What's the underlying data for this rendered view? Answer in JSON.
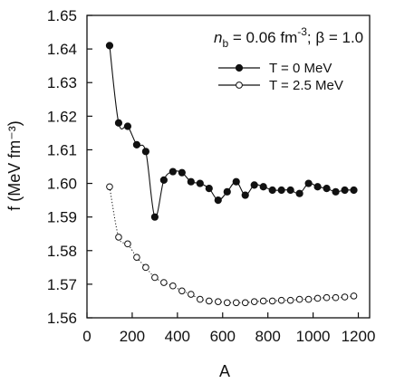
{
  "chart_data": {
    "type": "line",
    "title": "",
    "xlabel": "A",
    "ylabel": "f (MeV fm⁻³)",
    "xlim": [
      0,
      1250
    ],
    "ylim": [
      1.56,
      1.65
    ],
    "xticks": [
      0,
      200,
      400,
      600,
      800,
      1000,
      1200
    ],
    "yticks": [
      1.56,
      1.57,
      1.58,
      1.59,
      1.6,
      1.61,
      1.62,
      1.63,
      1.64,
      1.65
    ],
    "grid": false,
    "legend_position": "top-right",
    "annotation": {
      "prefix": "n",
      "subscript": "b",
      "equals": " = 0.06 fm",
      "superscript": "-3",
      "rest": "; β = 1.0"
    },
    "series": [
      {
        "name": "T = 0 MeV",
        "marker": "filled-circle",
        "line": "solid",
        "x": [
          100,
          140,
          180,
          220,
          260,
          300,
          340,
          380,
          420,
          460,
          500,
          540,
          580,
          620,
          660,
          700,
          740,
          780,
          820,
          860,
          900,
          940,
          980,
          1020,
          1060,
          1100,
          1140,
          1180
        ],
        "y": [
          1.641,
          1.618,
          1.617,
          1.6115,
          1.6095,
          1.59,
          1.601,
          1.6035,
          1.6032,
          1.6005,
          1.6,
          1.5985,
          1.595,
          1.5975,
          1.6005,
          1.5965,
          1.5995,
          1.599,
          1.598,
          1.598,
          1.598,
          1.597,
          1.6,
          1.599,
          1.5985,
          1.5975,
          1.598,
          1.598
        ]
      },
      {
        "name": "T = 2.5 MeV",
        "marker": "open-circle",
        "line": "dotted",
        "x": [
          100,
          140,
          180,
          220,
          260,
          300,
          340,
          380,
          420,
          460,
          500,
          540,
          580,
          620,
          660,
          700,
          740,
          780,
          820,
          860,
          900,
          940,
          980,
          1020,
          1060,
          1100,
          1140,
          1180
        ],
        "y": [
          1.599,
          1.584,
          1.582,
          1.578,
          1.575,
          1.572,
          1.5705,
          1.5695,
          1.568,
          1.567,
          1.5655,
          1.565,
          1.5648,
          1.5645,
          1.5645,
          1.5645,
          1.5648,
          1.565,
          1.565,
          1.5652,
          1.5652,
          1.5655,
          1.5655,
          1.5658,
          1.566,
          1.566,
          1.5662,
          1.5665
        ]
      }
    ]
  }
}
